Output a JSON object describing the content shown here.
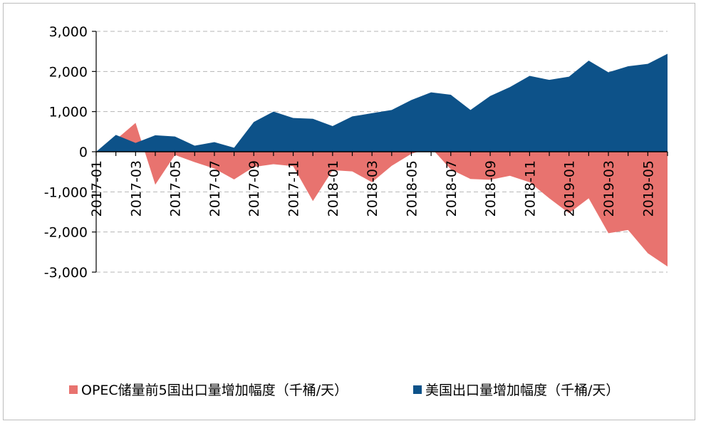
{
  "chart_data": {
    "type": "area",
    "x": [
      "2017-01",
      "2017-02",
      "2017-03",
      "2017-04",
      "2017-05",
      "2017-06",
      "2017-07",
      "2017-08",
      "2017-09",
      "2017-10",
      "2017-11",
      "2017-12",
      "2018-01",
      "2018-02",
      "2018-03",
      "2018-04",
      "2018-05",
      "2018-06",
      "2018-07",
      "2018-08",
      "2018-09",
      "2018-10",
      "2018-11",
      "2018-12",
      "2019-01",
      "2019-02",
      "2019-03",
      "2019-04",
      "2019-05",
      "2019-06"
    ],
    "x_tick_labels": [
      "2017-01",
      "2017-03",
      "2017-05",
      "2017-07",
      "2017-09",
      "2017-11",
      "2018-01",
      "2018-03",
      "2018-05",
      "2018-07",
      "2018-09",
      "2018-11",
      "2019-01",
      "2019-03",
      "2019-05"
    ],
    "ylim": [
      -3000,
      3000
    ],
    "y_ticks": [
      3000,
      2000,
      1000,
      0,
      -1000,
      -2000,
      -3000
    ],
    "y_tick_labels": [
      "3,000",
      "2,000",
      "1,000",
      "0",
      "-1,000",
      "-2,000",
      "-3,000"
    ],
    "grid": true,
    "legend_position": "bottom",
    "series": [
      {
        "name": "OPEC储量前5国出口量增加幅度（千桶/天）",
        "color": "#e8736f",
        "values": [
          0,
          300,
          720,
          -820,
          -80,
          -260,
          -420,
          -690,
          -380,
          -310,
          -360,
          -1230,
          -460,
          -490,
          -760,
          -350,
          -50,
          100,
          -440,
          -680,
          -700,
          -600,
          -760,
          -1160,
          -1530,
          -1160,
          -2030,
          -1950,
          -2530,
          -2860
        ]
      },
      {
        "name": "美国出口量增加幅度（千桶/天）",
        "color": "#0d5289",
        "values": [
          0,
          420,
          220,
          410,
          380,
          150,
          240,
          100,
          740,
          1000,
          840,
          820,
          640,
          880,
          960,
          1040,
          1290,
          1480,
          1420,
          1040,
          1390,
          1610,
          1890,
          1790,
          1870,
          2270,
          1980,
          2130,
          2190,
          2440
        ]
      }
    ]
  }
}
